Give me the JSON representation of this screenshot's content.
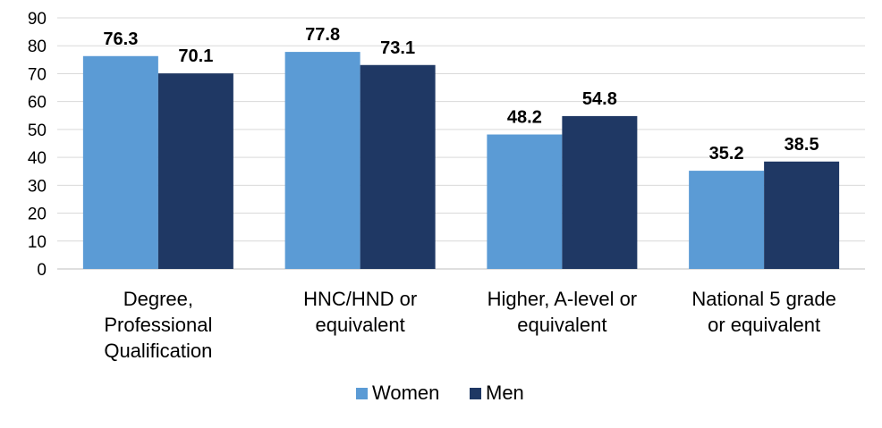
{
  "chart_data": {
    "type": "bar",
    "title": "",
    "xlabel": "",
    "ylabel": "",
    "ylim": [
      0,
      90
    ],
    "yticks": [
      0,
      10,
      20,
      30,
      40,
      50,
      60,
      70,
      80,
      90
    ],
    "grid": true,
    "legend_position": "bottom",
    "categories": [
      [
        "Degree,",
        "Professional",
        "Qualification"
      ],
      [
        "HNC/HND or",
        "equivalent"
      ],
      [
        "Higher, A-level or",
        "equivalent"
      ],
      [
        "National 5 grade",
        "or equivalent"
      ]
    ],
    "series": [
      {
        "name": "Women",
        "color": "#5B9BD5",
        "values": [
          76.3,
          77.8,
          48.2,
          35.2
        ]
      },
      {
        "name": "Men",
        "color": "#1F3864",
        "values": [
          70.1,
          73.1,
          54.8,
          38.5
        ]
      }
    ]
  }
}
